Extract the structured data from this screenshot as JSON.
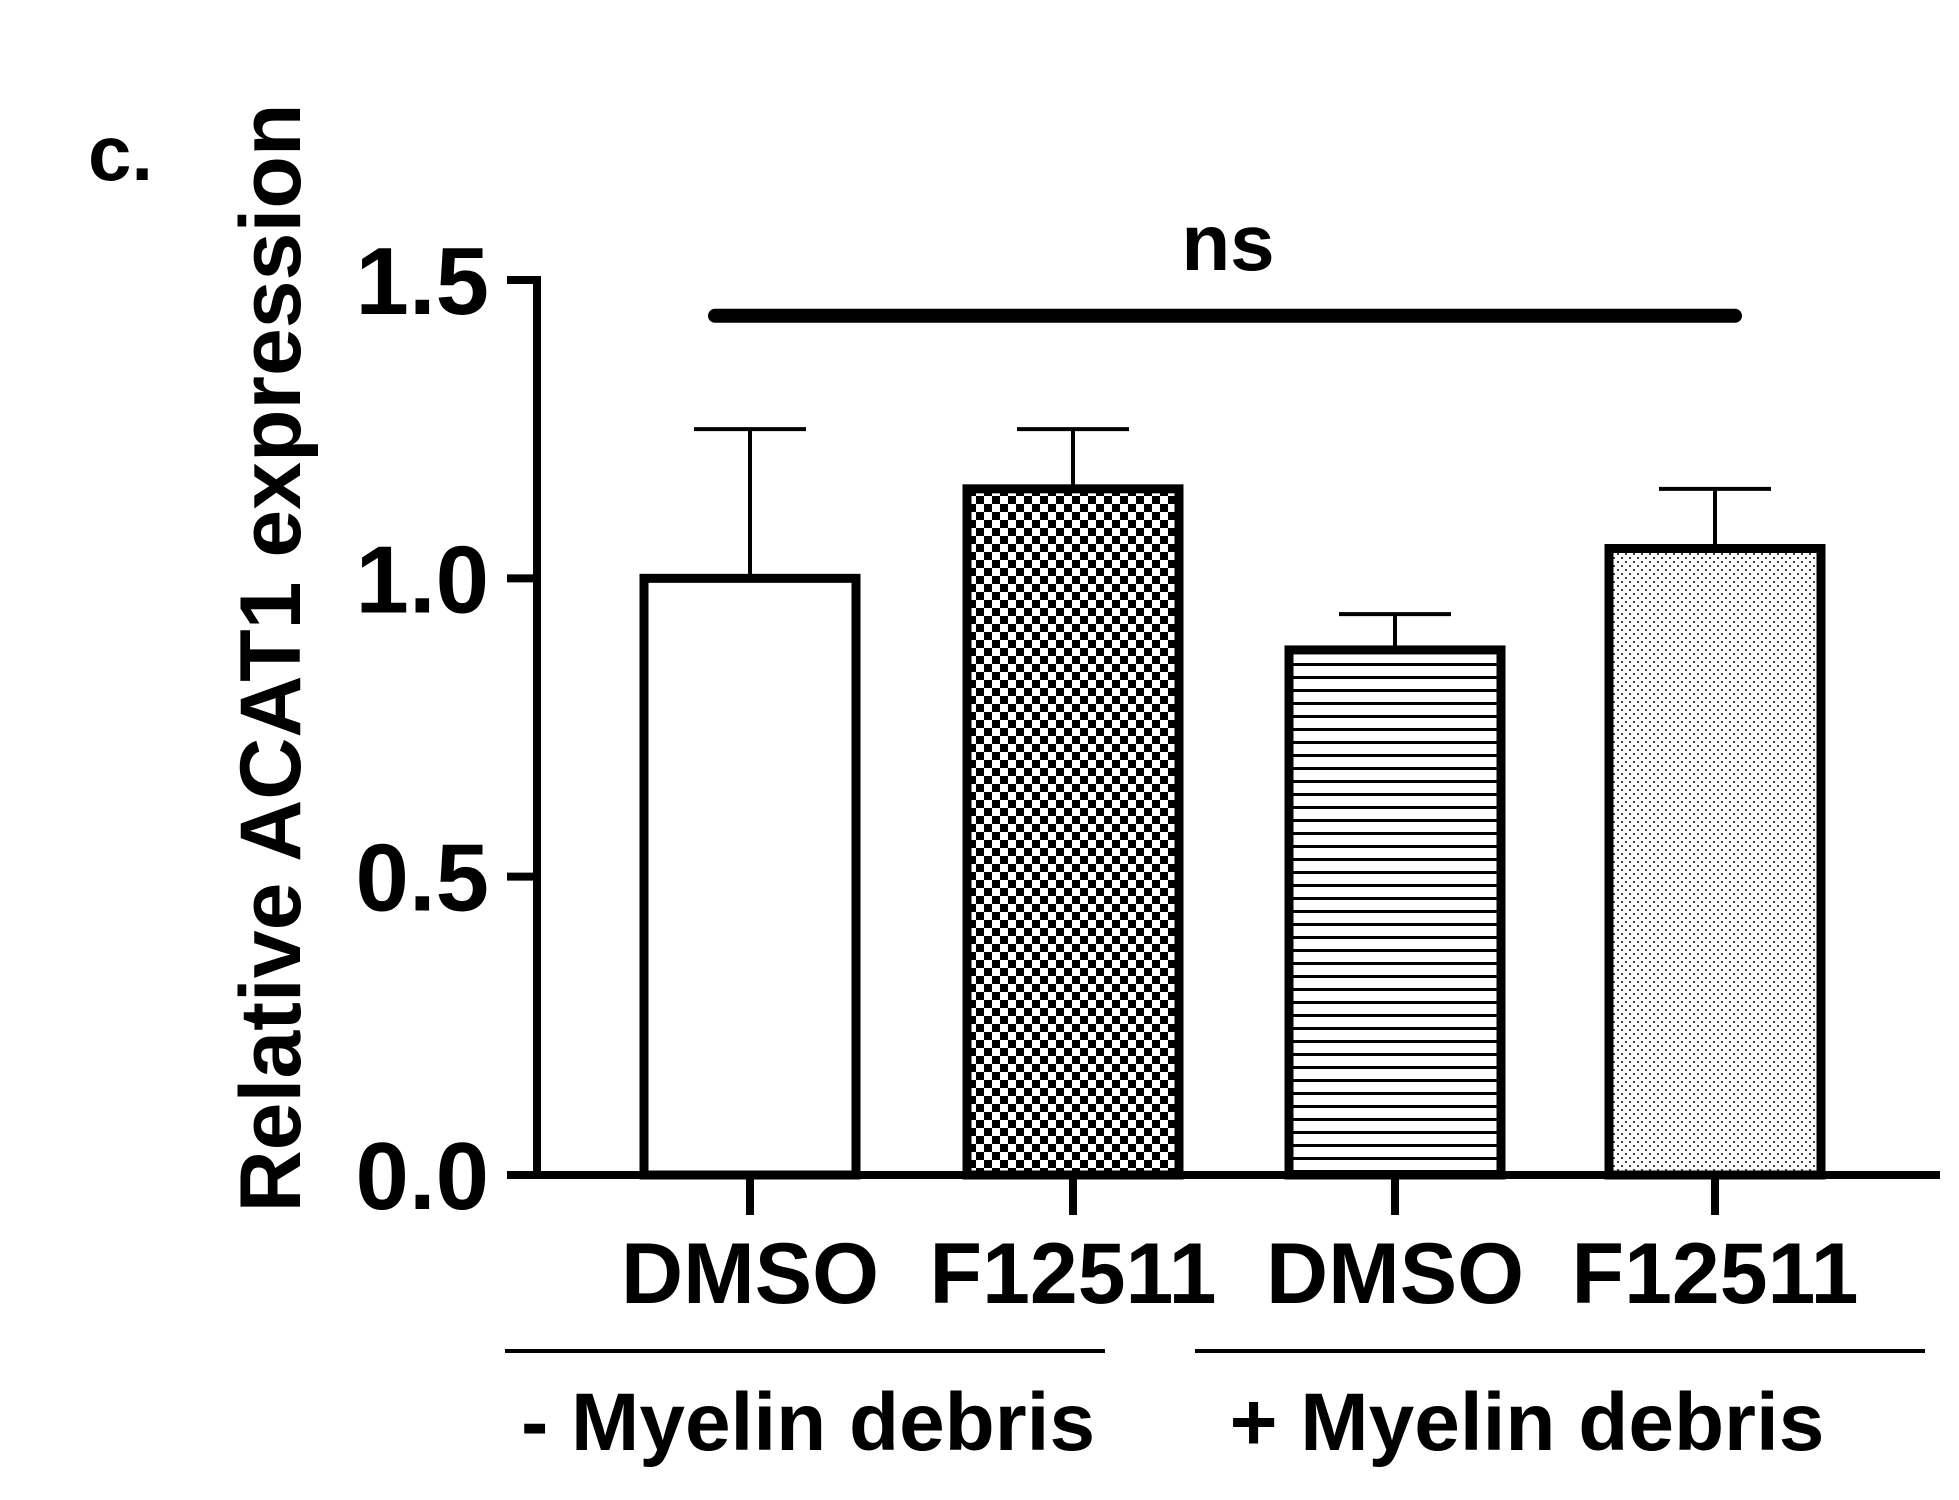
{
  "panel_label": "c.",
  "chart_data": {
    "type": "bar",
    "ylabel": "Relative ACAT1 expression",
    "ylim": [
      0,
      1.5
    ],
    "yticks": [
      0.0,
      0.5,
      1.0,
      1.5
    ],
    "ytick_labels": [
      "0.0",
      "0.5",
      "1.0",
      "1.5"
    ],
    "categories": [
      "DMSO",
      "F12511",
      "DMSO",
      "F12511"
    ],
    "values": [
      1.0,
      1.15,
      0.88,
      1.05
    ],
    "errors": [
      0.25,
      0.1,
      0.06,
      0.1
    ],
    "patterns": [
      "solid-white",
      "checkerboard",
      "horizontal-lines",
      "dots"
    ],
    "groups": [
      {
        "label": "- Myelin debris",
        "members": [
          0,
          1
        ]
      },
      {
        "label": "+ Myelin debris",
        "members": [
          2,
          3
        ]
      }
    ],
    "significance": {
      "label": "ns",
      "from": 0,
      "to": 3,
      "y": 1.44
    },
    "grid": false,
    "legend": "none"
  }
}
